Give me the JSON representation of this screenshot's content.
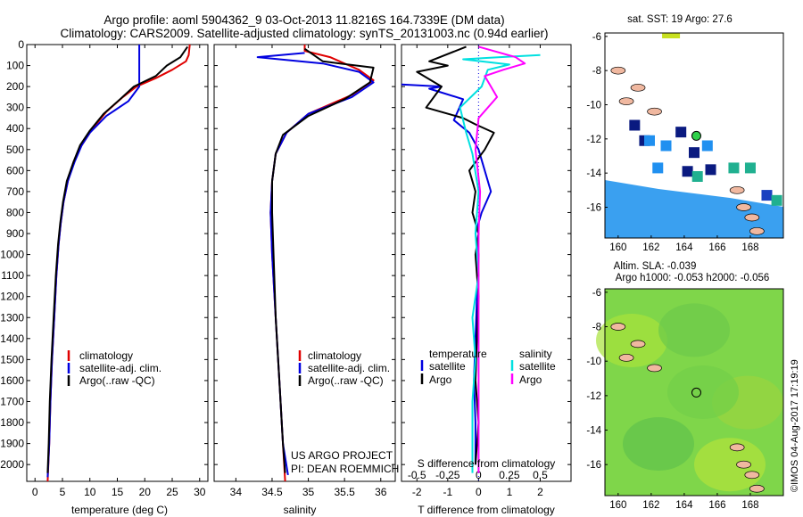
{
  "header": {
    "line1": "Argo profile: aoml 5904362_9 03-Oct-2013 11.8216S 164.7339E (DM data)",
    "line2": "Climatology: CARS2009. Satellite-adjusted climatology: synTS_20131003.nc (0.94d earlier)"
  },
  "colors": {
    "climatology": "#e00000",
    "satellite": "#0000e0",
    "argo": "#000000",
    "salinity_sat": "#00e0e0",
    "salinity_argo": "#ff00ff"
  },
  "chart_data": [
    {
      "type": "line",
      "name": "temperature-profile",
      "xlabel": "temperature (deg C)",
      "ylabel": "",
      "xlim": [
        -1.5,
        31.5
      ],
      "ylim": [
        2080,
        0
      ],
      "xticks": [
        "0",
        "5",
        "10",
        "15",
        "20",
        "25",
        "30"
      ],
      "xtick_values": [
        0,
        5,
        10,
        15,
        20,
        25,
        30
      ],
      "yticks": [
        "0",
        "100",
        "200",
        "300",
        "400",
        "500",
        "600",
        "700",
        "800",
        "900",
        "1000",
        "1100",
        "1200",
        "1300",
        "1400",
        "1500",
        "1600",
        "1700",
        "1800",
        "1900",
        "2000"
      ],
      "ytick_values": [
        0,
        100,
        200,
        300,
        400,
        500,
        600,
        700,
        800,
        900,
        1000,
        1100,
        1200,
        1300,
        1400,
        1500,
        1600,
        1700,
        1800,
        1900,
        2000
      ],
      "legend": [
        "climatology",
        "satellite-adj. clim.",
        "Argo(..raw -QC)"
      ],
      "series": [
        {
          "name": "climatology",
          "color": "#e00000",
          "points": [
            [
              28.2,
              0
            ],
            [
              28.0,
              50
            ],
            [
              27.5,
              80
            ],
            [
              25,
              120
            ],
            [
              22,
              160
            ],
            [
              18.5,
              200
            ],
            [
              16,
              250
            ],
            [
              13,
              320
            ],
            [
              10.5,
              400
            ],
            [
              8.5,
              480
            ],
            [
              7,
              560
            ],
            [
              6,
              650
            ],
            [
              5.2,
              750
            ],
            [
              4.7,
              850
            ],
            [
              4.3,
              950
            ],
            [
              3.9,
              1100
            ],
            [
              3.5,
              1300
            ],
            [
              3.1,
              1500
            ],
            [
              2.8,
              1700
            ],
            [
              2.6,
              1900
            ],
            [
              2.3,
              2080
            ]
          ]
        },
        {
          "name": "satellite-adj. clim.",
          "color": "#0000e0",
          "points": [
            [
              19,
              0
            ],
            [
              19,
              200
            ],
            [
              17,
              270
            ],
            [
              13,
              340
            ],
            [
              10,
              420
            ],
            [
              8.5,
              480
            ],
            [
              7.2,
              560
            ],
            [
              6,
              650
            ],
            [
              5.2,
              750
            ],
            [
              4.7,
              850
            ],
            [
              4.3,
              950
            ],
            [
              3.9,
              1100
            ],
            [
              3.5,
              1300
            ],
            [
              3.1,
              1500
            ],
            [
              2.8,
              1700
            ],
            [
              2.6,
              1900
            ],
            [
              2.3,
              2060
            ]
          ]
        },
        {
          "name": "Argo(..raw -QC)",
          "color": "#000000",
          "points": [
            [
              27.8,
              10
            ],
            [
              26.5,
              60
            ],
            [
              24,
              100
            ],
            [
              22,
              150
            ],
            [
              18,
              200
            ],
            [
              15.5,
              260
            ],
            [
              12.5,
              330
            ],
            [
              10,
              410
            ],
            [
              8.2,
              480
            ],
            [
              7,
              560
            ],
            [
              5.8,
              650
            ],
            [
              5.1,
              750
            ],
            [
              4.6,
              850
            ],
            [
              4.2,
              950
            ],
            [
              3.8,
              1100
            ],
            [
              3.4,
              1300
            ],
            [
              3.0,
              1500
            ],
            [
              2.7,
              1700
            ],
            [
              2.5,
              1900
            ],
            [
              2.3,
              2040
            ]
          ]
        }
      ]
    },
    {
      "type": "line",
      "name": "salinity-profile",
      "xlabel": "salinity",
      "xlim": [
        33.7,
        36.2
      ],
      "ylim": [
        2080,
        0
      ],
      "xticks": [
        "34",
        "34.5",
        "35",
        "35.5",
        "36"
      ],
      "xtick_values": [
        34,
        34.5,
        35,
        35.5,
        36
      ],
      "legend": [
        "climatology",
        "satellite-adj. clim.",
        "Argo(..raw -QC)"
      ],
      "series": [
        {
          "name": "climatology",
          "color": "#e00000",
          "points": [
            [
              34.95,
              0
            ],
            [
              34.95,
              30
            ],
            [
              35.3,
              60
            ],
            [
              35.7,
              120
            ],
            [
              35.9,
              170
            ],
            [
              35.6,
              240
            ],
            [
              35.0,
              330
            ],
            [
              34.7,
              420
            ],
            [
              34.55,
              520
            ],
            [
              34.5,
              650
            ],
            [
              34.48,
              800
            ],
            [
              34.5,
              1000
            ],
            [
              34.55,
              1300
            ],
            [
              34.6,
              1600
            ],
            [
              34.65,
              1900
            ],
            [
              34.68,
              2080
            ]
          ]
        },
        {
          "name": "satellite-adj. clim.",
          "color": "#0000e0",
          "points": [
            [
              34.95,
              40
            ],
            [
              34.3,
              60
            ],
            [
              35.2,
              90
            ],
            [
              35.7,
              130
            ],
            [
              35.9,
              180
            ],
            [
              35.6,
              250
            ],
            [
              35.0,
              330
            ],
            [
              34.7,
              420
            ],
            [
              34.55,
              520
            ],
            [
              34.5,
              650
            ],
            [
              34.48,
              800
            ],
            [
              34.5,
              1000
            ],
            [
              34.55,
              1300
            ],
            [
              34.6,
              1600
            ],
            [
              34.65,
              1900
            ],
            [
              34.72,
              2050
            ]
          ]
        },
        {
          "name": "Argo(..raw -QC)",
          "color": "#000000",
          "points": [
            [
              34.95,
              20
            ],
            [
              35.2,
              80
            ],
            [
              35.9,
              110
            ],
            [
              35.85,
              180
            ],
            [
              35.5,
              260
            ],
            [
              35.0,
              340
            ],
            [
              34.65,
              430
            ],
            [
              34.55,
              520
            ],
            [
              34.5,
              650
            ],
            [
              34.5,
              800
            ],
            [
              34.52,
              1000
            ],
            [
              34.55,
              1300
            ],
            [
              34.6,
              1600
            ],
            [
              34.65,
              1900
            ],
            [
              34.68,
              2040
            ]
          ]
        }
      ]
    },
    {
      "type": "line",
      "name": "difference-profile",
      "xlabel": "T difference from climatology",
      "xlabel2": "S difference from climatology",
      "xlim": [
        -2.5,
        3.0
      ],
      "ylim": [
        2080,
        0
      ],
      "xticks": [
        "-2",
        "-1",
        "0",
        "1",
        "2"
      ],
      "xtick_values": [
        -2,
        -1,
        0,
        1,
        2
      ],
      "xticks_top": [
        "-0.5",
        "-0.25",
        "0",
        "0.25",
        "0.5"
      ],
      "legend_temperature_title": "temperature",
      "legend_salinity_title": "salinity",
      "legend_temperature": [
        "satellite",
        "Argo"
      ],
      "legend_salinity": [
        "satellite",
        "Argo"
      ],
      "series": [
        {
          "name": "temperature satellite",
          "color": "#0000e0",
          "points": [
            [
              -2.5,
              190
            ],
            [
              -1.2,
              200
            ],
            [
              -1.6,
              210
            ],
            [
              -0.5,
              260
            ],
            [
              -0.8,
              360
            ],
            [
              -0.3,
              420
            ],
            [
              0,
              500
            ],
            [
              0.2,
              600
            ],
            [
              0.4,
              700
            ],
            [
              0.1,
              800
            ],
            [
              -0.1,
              900
            ],
            [
              0,
              1000
            ],
            [
              -0.05,
              1200
            ],
            [
              -0.1,
              1400
            ],
            [
              -0.15,
              1600
            ],
            [
              -0.1,
              1800
            ],
            [
              -0.1,
              2000
            ]
          ]
        },
        {
          "name": "temperature Argo",
          "color": "#000000",
          "points": [
            [
              -0.4,
              10
            ],
            [
              -1.6,
              80
            ],
            [
              -1.0,
              100
            ],
            [
              -2.0,
              130
            ],
            [
              -1.2,
              200
            ],
            [
              -1.7,
              300
            ],
            [
              -0.5,
              350
            ],
            [
              -0.1,
              380
            ],
            [
              0.5,
              420
            ],
            [
              0.2,
              500
            ],
            [
              -0.3,
              600
            ],
            [
              -0.1,
              700
            ],
            [
              -0.2,
              800
            ],
            [
              0,
              900
            ],
            [
              -0.1,
              1000
            ],
            [
              0,
              1200
            ],
            [
              -0.05,
              1400
            ],
            [
              -0.1,
              1600
            ],
            [
              0,
              1800
            ],
            [
              -0.1,
              2000
            ]
          ]
        },
        {
          "name": "salinity satellite",
          "color": "#00e0e0",
          "points": [
            [
              2.0,
              50
            ],
            [
              0.7,
              60
            ],
            [
              -0.5,
              70
            ],
            [
              1.0,
              95
            ],
            [
              0.3,
              120
            ],
            [
              0.1,
              200
            ],
            [
              -0.6,
              300
            ],
            [
              -0.4,
              420
            ],
            [
              -0.2,
              520
            ],
            [
              0,
              700
            ],
            [
              -0.1,
              900
            ],
            [
              0,
              1100
            ],
            [
              -0.2,
              1300
            ],
            [
              -0.1,
              1500
            ],
            [
              -0.2,
              1700
            ],
            [
              -0.2,
              1900
            ],
            [
              -0.2,
              2040
            ]
          ]
        },
        {
          "name": "salinity Argo",
          "color": "#ff00ff",
          "points": [
            [
              0,
              10
            ],
            [
              1.2,
              60
            ],
            [
              1.5,
              90
            ],
            [
              0.8,
              120
            ],
            [
              0.2,
              150
            ],
            [
              0.6,
              250
            ],
            [
              0,
              350
            ],
            [
              -0.1,
              500
            ],
            [
              0.05,
              700
            ],
            [
              0,
              900
            ],
            [
              0,
              1200
            ],
            [
              0,
              1500
            ],
            [
              0,
              1800
            ],
            [
              0,
              2040
            ]
          ]
        }
      ]
    },
    {
      "type": "heatmap",
      "name": "sst-map",
      "title": "sat. SST: 19 Argo: 27.6",
      "xlim": [
        159.2,
        170
      ],
      "ylim": [
        -17.8,
        -5.8
      ],
      "xticks": [
        "160",
        "162",
        "164",
        "166",
        "168"
      ],
      "xtick_values": [
        160,
        162,
        164,
        166,
        168
      ],
      "yticks": [
        "-6",
        "-8",
        "-10",
        "-12",
        "-14",
        "-16"
      ],
      "ytick_values": [
        -6,
        -8,
        -10,
        -12,
        -14,
        -16
      ],
      "argo_position": [
        164.7339,
        -11.8216
      ]
    },
    {
      "type": "heatmap",
      "name": "sla-map",
      "title": "Altim. SLA: -0.039",
      "subtitle": "Argo h1000: -0.053 h2000: -0.056",
      "xlim": [
        159.2,
        170
      ],
      "ylim": [
        -17.8,
        -5.8
      ],
      "xticks": [
        "160",
        "162",
        "164",
        "166",
        "168"
      ],
      "xtick_values": [
        160,
        162,
        164,
        166,
        168
      ],
      "yticks": [
        "-6",
        "-8",
        "-10",
        "-12",
        "-14",
        "-16"
      ],
      "ytick_values": [
        -6,
        -8,
        -10,
        -12,
        -14,
        -16
      ],
      "argo_position": [
        164.7339,
        -11.8216
      ]
    }
  ],
  "annotations": {
    "project": "US ARGO PROJECT",
    "pi": "PI: DEAN ROEMMICH",
    "credit": "©IMOS 04-Aug-2017 17:19:19"
  }
}
